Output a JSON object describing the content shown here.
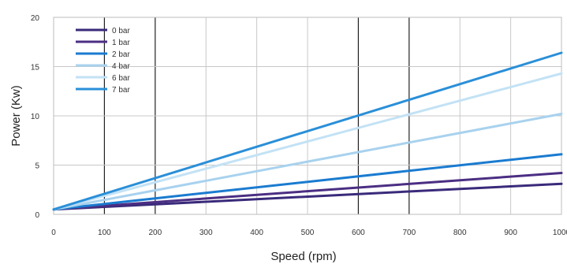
{
  "chart_data": {
    "type": "line",
    "title": "",
    "xlabel": "Speed (rpm)",
    "ylabel": "Power (Kw)",
    "xlim": [
      0,
      1000
    ],
    "ylim": [
      0,
      20
    ],
    "x_ticks": [
      "0",
      "100",
      "200",
      "300",
      "400",
      "500",
      "600",
      "700",
      "800",
      "900",
      "1000"
    ],
    "y_ticks": [
      "0",
      "5",
      "10",
      "15",
      "20"
    ],
    "grid": true,
    "legend_position": "top-left",
    "x": [
      0,
      1000
    ],
    "series": [
      {
        "name": "0 bar",
        "values": [
          0.5,
          3.1
        ],
        "color": "#3a2a7a"
      },
      {
        "name": "1 bar",
        "values": [
          0.5,
          4.2
        ],
        "color": "#4b2e83"
      },
      {
        "name": "2 bar",
        "values": [
          0.5,
          6.1
        ],
        "color": "#1a7bd0"
      },
      {
        "name": "4 bar",
        "values": [
          0.5,
          10.2
        ],
        "color": "#a8d2ee"
      },
      {
        "name": "6 bar",
        "values": [
          0.5,
          14.3
        ],
        "color": "#c3e2f5"
      },
      {
        "name": "7 bar",
        "values": [
          0.5,
          16.4
        ],
        "color": "#2a8fd8"
      }
    ]
  }
}
